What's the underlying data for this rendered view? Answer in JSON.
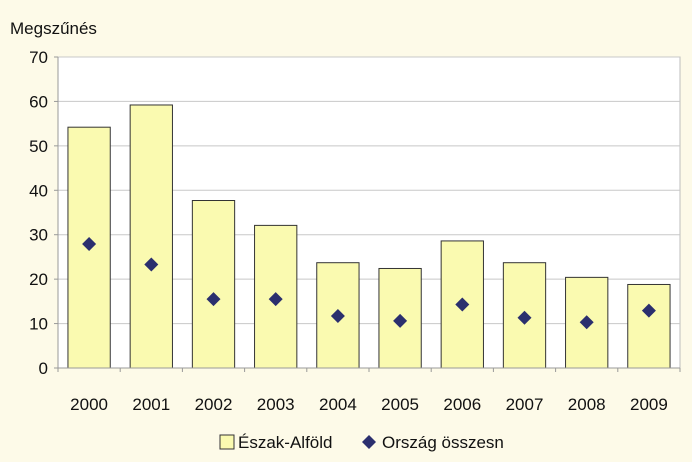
{
  "chart_data": {
    "type": "bar",
    "ylabel": "Megszűnés",
    "ylim": [
      0,
      70
    ],
    "yticks": [
      0,
      10,
      20,
      30,
      40,
      50,
      60,
      70
    ],
    "grid": true,
    "legend_position": "bottom",
    "categories": [
      "2000",
      "2001",
      "2002",
      "2003",
      "2004",
      "2005",
      "2006",
      "2007",
      "2008",
      "2009"
    ],
    "series": [
      {
        "name": "Észak-Alföld",
        "kind": "bar",
        "color": "#fafab0",
        "values": [
          54.2,
          59.2,
          37.7,
          32.1,
          23.7,
          22.4,
          28.6,
          23.7,
          20.4,
          18.8
        ]
      },
      {
        "name": "Ország összesn",
        "kind": "marker",
        "marker": "diamond",
        "color": "#2b2f6e",
        "values": [
          27.9,
          23.3,
          15.5,
          15.5,
          11.7,
          10.6,
          14.3,
          11.3,
          10.3,
          12.9
        ]
      }
    ]
  }
}
